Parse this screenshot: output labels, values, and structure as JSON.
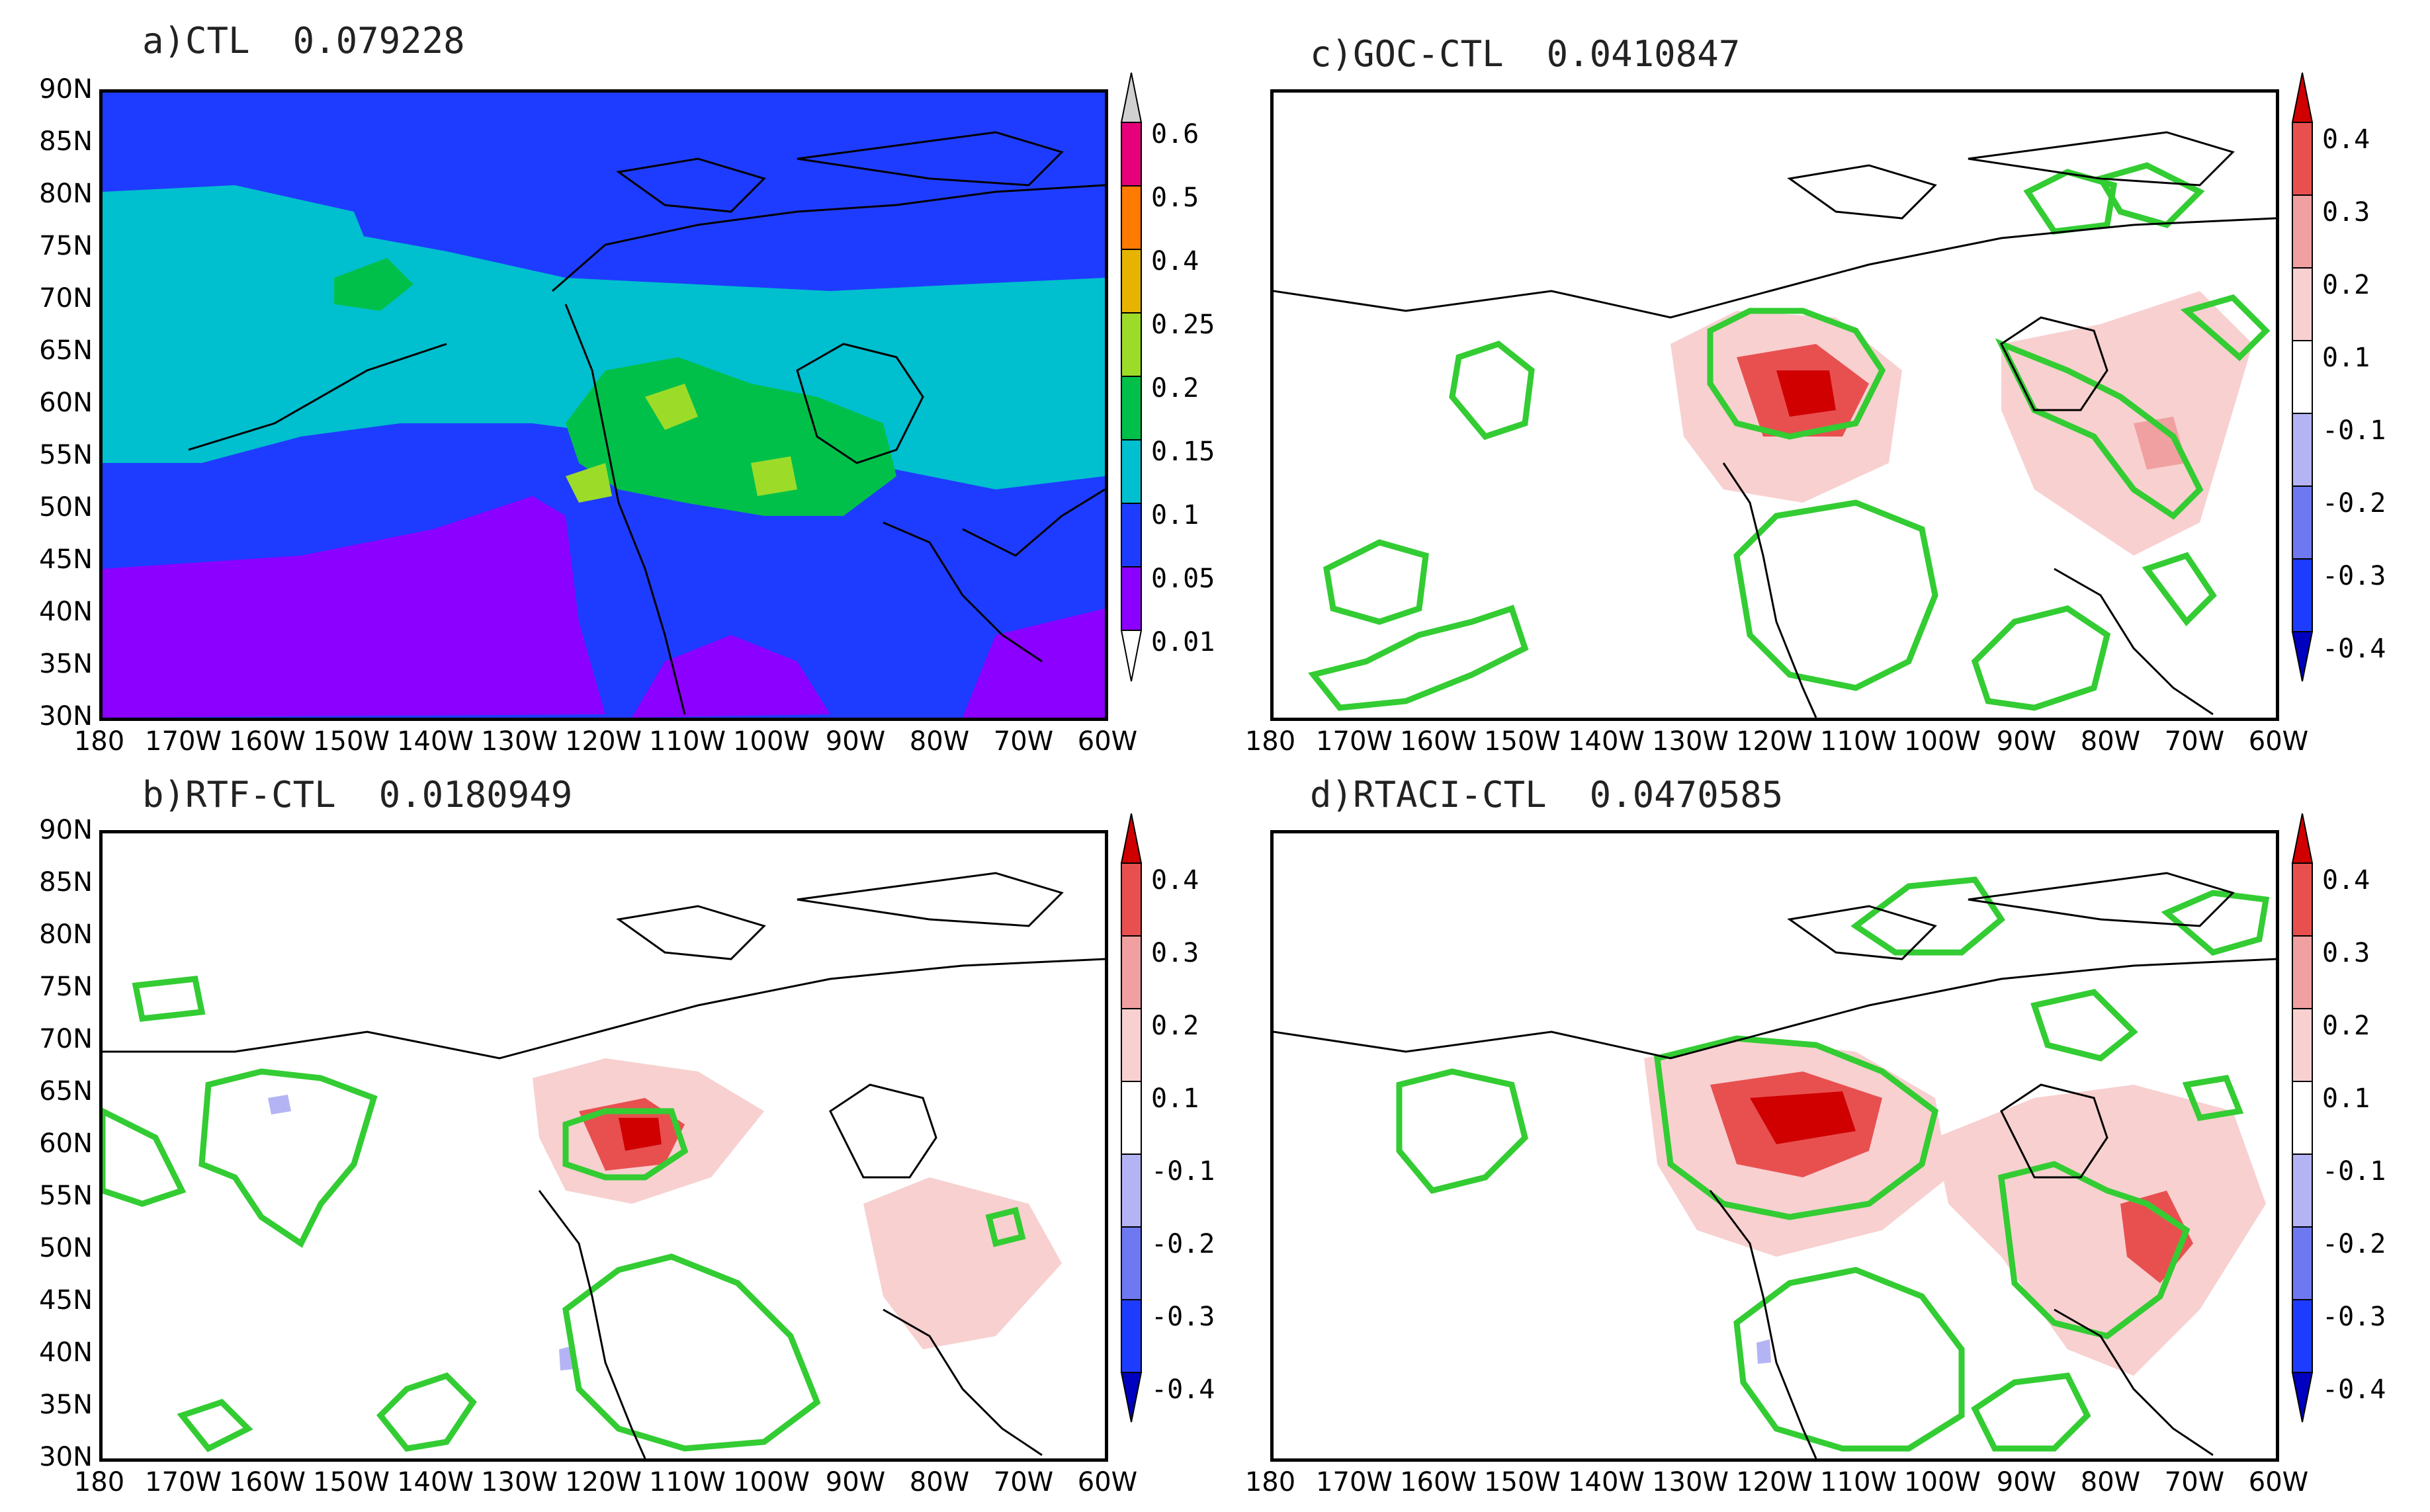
{
  "axes": {
    "lat_ticks": [
      "90N",
      "85N",
      "80N",
      "75N",
      "70N",
      "65N",
      "60N",
      "55N",
      "50N",
      "45N",
      "40N",
      "35N",
      "30N"
    ],
    "lon_ticks": [
      "180",
      "170W",
      "160W",
      "150W",
      "140W",
      "130W",
      "120W",
      "110W",
      "100W",
      "90W",
      "80W",
      "70W",
      "60W"
    ],
    "lat_range": [
      30,
      90
    ],
    "lon_range": [
      -180,
      -60
    ]
  },
  "panels": [
    {
      "id": "a",
      "title": "a)CTL  0.079228",
      "colorbar": {
        "labels": [
          "0.6",
          "0.5",
          "0.4",
          "0.25",
          "0.2",
          "0.15",
          "0.1",
          "0.05",
          "0.01"
        ],
        "colors": [
          "#8b00ff",
          "#1e3cff",
          "#00bfcf",
          "#00c04a",
          "#9cdc28",
          "#e6b400",
          "#ff7a00",
          "#e6007a"
        ]
      }
    },
    {
      "id": "c",
      "title": "c)GOC-CTL  0.0410847",
      "colorbar": {
        "labels": [
          "0.4",
          "0.3",
          "0.2",
          "0.1",
          "-0.1",
          "-0.2",
          "-0.3",
          "-0.4"
        ],
        "colors": [
          "#0000c0",
          "#1e3cff",
          "#6e78f0",
          "#b4b4f5",
          "#ffffff",
          "#f8d0d0",
          "#f0a0a0",
          "#e85050",
          "#d00000"
        ]
      }
    },
    {
      "id": "b",
      "title": "b)RTF-CTL  0.0180949",
      "colorbar": {
        "labels": [
          "0.4",
          "0.3",
          "0.2",
          "0.1",
          "-0.1",
          "-0.2",
          "-0.3",
          "-0.4"
        ],
        "colors": [
          "#0000c0",
          "#1e3cff",
          "#6e78f0",
          "#b4b4f5",
          "#ffffff",
          "#f8d0d0",
          "#f0a0a0",
          "#e85050",
          "#d00000"
        ]
      }
    },
    {
      "id": "d",
      "title": "d)RTACI-CTL  0.0470585",
      "colorbar": {
        "labels": [
          "0.4",
          "0.3",
          "0.2",
          "0.1",
          "-0.1",
          "-0.2",
          "-0.3",
          "-0.4"
        ],
        "colors": [
          "#0000c0",
          "#1e3cff",
          "#6e78f0",
          "#b4b4f5",
          "#ffffff",
          "#f8d0d0",
          "#f0a0a0",
          "#e85050",
          "#d00000"
        ]
      }
    }
  ],
  "colors": {
    "contour_green": "#33cc33",
    "coastline": "#000000"
  }
}
